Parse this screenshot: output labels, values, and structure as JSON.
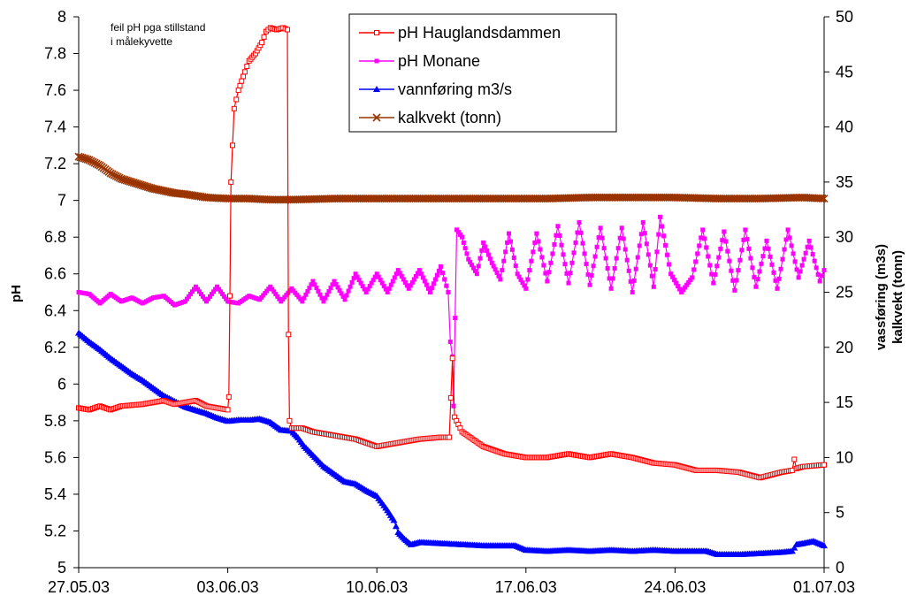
{
  "chart_data": {
    "type": "line",
    "title": "",
    "xlabel": "",
    "ylabel": "pH",
    "y2label_line1": "vassføring (m3s)",
    "y2label_line2": "kalkvekt (tonn)",
    "xlim": [
      0,
      35
    ],
    "ylim": [
      5,
      8
    ],
    "y2lim": [
      0,
      50
    ],
    "x_ticks": [
      0,
      7,
      14,
      21,
      28,
      35
    ],
    "x_tick_labels": [
      "27.05.03",
      "03.06.03",
      "10.06.03",
      "17.06.03",
      "24.06.03",
      "01.07.03"
    ],
    "y_ticks": [
      "5",
      "5.2",
      "5.4",
      "5.6",
      "5.8",
      "6",
      "6.2",
      "6.4",
      "6.6",
      "6.8",
      "7",
      "7.2",
      "7.4",
      "7.6",
      "7.8",
      "8"
    ],
    "y2_ticks": [
      "0",
      "5",
      "10",
      "15",
      "20",
      "25",
      "30",
      "35",
      "40",
      "45",
      "50"
    ],
    "grid": false,
    "legend_position": "top-center",
    "annotation_line1": "feil pH pga stillstand",
    "annotation_line2": "i målekyvette",
    "series": [
      {
        "name": "pH Hauglandsdammen",
        "axis": "left",
        "color": "#ff0000",
        "marker": "open-square",
        "points": [
          [
            0,
            5.87
          ],
          [
            0.5,
            5.86
          ],
          [
            1,
            5.88
          ],
          [
            1.5,
            5.86
          ],
          [
            2,
            5.88
          ],
          [
            3,
            5.89
          ],
          [
            3.5,
            5.9
          ],
          [
            4,
            5.91
          ],
          [
            4.5,
            5.89
          ],
          [
            5,
            5.9
          ],
          [
            5.5,
            5.91
          ],
          [
            6,
            5.88
          ],
          [
            6.5,
            5.87
          ],
          [
            7,
            5.86
          ],
          [
            7.05,
            5.93
          ],
          [
            7.1,
            6.48
          ],
          [
            7.15,
            7.1
          ],
          [
            7.3,
            7.5
          ],
          [
            7.5,
            7.6
          ],
          [
            7.8,
            7.7
          ],
          [
            8,
            7.76
          ],
          [
            8.3,
            7.8
          ],
          [
            8.6,
            7.86
          ],
          [
            8.8,
            7.92
          ],
          [
            9,
            7.94
          ],
          [
            9.3,
            7.93
          ],
          [
            9.6,
            7.94
          ],
          [
            9.8,
            7.93
          ],
          [
            9.85,
            6.27
          ],
          [
            9.9,
            5.8
          ],
          [
            10,
            5.76
          ],
          [
            10.5,
            5.76
          ],
          [
            11,
            5.74
          ],
          [
            12,
            5.72
          ],
          [
            13,
            5.7
          ],
          [
            14,
            5.66
          ],
          [
            15,
            5.68
          ],
          [
            16,
            5.7
          ],
          [
            17,
            5.71
          ],
          [
            17.4,
            5.71
          ],
          [
            17.55,
            6.14
          ],
          [
            17.65,
            5.82
          ],
          [
            18,
            5.74
          ],
          [
            18.5,
            5.7
          ],
          [
            19,
            5.66
          ],
          [
            20,
            5.62
          ],
          [
            21,
            5.6
          ],
          [
            22,
            5.6
          ],
          [
            23,
            5.62
          ],
          [
            24,
            5.6
          ],
          [
            25,
            5.62
          ],
          [
            26,
            5.6
          ],
          [
            27,
            5.57
          ],
          [
            28,
            5.56
          ],
          [
            29,
            5.53
          ],
          [
            30,
            5.53
          ],
          [
            31,
            5.52
          ],
          [
            32,
            5.49
          ],
          [
            33,
            5.52
          ],
          [
            33.5,
            5.53
          ],
          [
            33.6,
            5.59
          ],
          [
            33.7,
            5.54
          ],
          [
            34,
            5.55
          ],
          [
            35,
            5.56
          ]
        ]
      },
      {
        "name": "pH Monane",
        "axis": "left",
        "color": "#ff00ff",
        "marker": "filled-square",
        "points": [
          [
            0,
            6.5
          ],
          [
            0.5,
            6.49
          ],
          [
            1,
            6.44
          ],
          [
            1.5,
            6.49
          ],
          [
            2,
            6.45
          ],
          [
            2.5,
            6.47
          ],
          [
            3,
            6.44
          ],
          [
            3.5,
            6.47
          ],
          [
            4,
            6.48
          ],
          [
            4.5,
            6.43
          ],
          [
            5,
            6.45
          ],
          [
            5.5,
            6.53
          ],
          [
            6,
            6.45
          ],
          [
            6.5,
            6.53
          ],
          [
            7,
            6.45
          ],
          [
            7.5,
            6.44
          ],
          [
            8,
            6.48
          ],
          [
            8.5,
            6.46
          ],
          [
            9,
            6.53
          ],
          [
            9.5,
            6.45
          ],
          [
            10,
            6.52
          ],
          [
            10.5,
            6.45
          ],
          [
            11,
            6.56
          ],
          [
            11.5,
            6.45
          ],
          [
            12,
            6.56
          ],
          [
            12.5,
            6.46
          ],
          [
            13,
            6.6
          ],
          [
            13.5,
            6.5
          ],
          [
            14,
            6.6
          ],
          [
            14.5,
            6.5
          ],
          [
            15,
            6.62
          ],
          [
            15.5,
            6.52
          ],
          [
            16,
            6.62
          ],
          [
            16.5,
            6.5
          ],
          [
            17,
            6.64
          ],
          [
            17.35,
            6.5
          ],
          [
            17.45,
            6.23
          ],
          [
            17.55,
            6.15
          ],
          [
            17.6,
            5.88
          ],
          [
            17.75,
            6.84
          ],
          [
            18,
            6.8
          ],
          [
            18.3,
            6.68
          ],
          [
            18.7,
            6.6
          ],
          [
            19,
            6.77
          ],
          [
            19.4,
            6.66
          ],
          [
            19.8,
            6.57
          ],
          [
            20.2,
            6.82
          ],
          [
            20.6,
            6.6
          ],
          [
            21,
            6.52
          ],
          [
            21.5,
            6.82
          ],
          [
            22,
            6.56
          ],
          [
            22.5,
            6.86
          ],
          [
            23,
            6.55
          ],
          [
            23.5,
            6.88
          ],
          [
            24,
            6.54
          ],
          [
            24.5,
            6.85
          ],
          [
            25,
            6.52
          ],
          [
            25.5,
            6.85
          ],
          [
            26,
            6.5
          ],
          [
            26.5,
            6.88
          ],
          [
            27,
            6.53
          ],
          [
            27.3,
            6.91
          ],
          [
            27.8,
            6.6
          ],
          [
            28.3,
            6.5
          ],
          [
            28.8,
            6.58
          ],
          [
            29.3,
            6.84
          ],
          [
            29.8,
            6.55
          ],
          [
            30.3,
            6.83
          ],
          [
            30.8,
            6.51
          ],
          [
            31.3,
            6.84
          ],
          [
            31.8,
            6.53
          ],
          [
            32.3,
            6.78
          ],
          [
            32.8,
            6.52
          ],
          [
            33.3,
            6.84
          ],
          [
            33.8,
            6.58
          ],
          [
            34.3,
            6.78
          ],
          [
            34.8,
            6.56
          ],
          [
            35,
            6.62
          ]
        ]
      },
      {
        "name": "vannføring m3/s",
        "axis": "right",
        "color": "#0000ff",
        "marker": "filled-triangle",
        "points": [
          [
            0,
            21.3
          ],
          [
            0.5,
            20.5
          ],
          [
            1,
            19.8
          ],
          [
            1.5,
            19
          ],
          [
            2,
            18.3
          ],
          [
            2.5,
            17.6
          ],
          [
            3,
            17
          ],
          [
            3.5,
            16.3
          ],
          [
            4,
            15.6
          ],
          [
            4.5,
            15.1
          ],
          [
            5,
            14.6
          ],
          [
            5.5,
            14.3
          ],
          [
            6,
            14
          ],
          [
            6.5,
            13.6
          ],
          [
            7,
            13.3
          ],
          [
            7.5,
            13.4
          ],
          [
            8,
            13.4
          ],
          [
            8.5,
            13.5
          ],
          [
            9,
            13.2
          ],
          [
            9.5,
            12.5
          ],
          [
            10,
            12.4
          ],
          [
            10.3,
            11.8
          ],
          [
            10.6,
            11
          ],
          [
            11,
            10.2
          ],
          [
            11.5,
            9.2
          ],
          [
            12,
            8.5
          ],
          [
            12.5,
            7.8
          ],
          [
            13,
            7.6
          ],
          [
            13.5,
            7
          ],
          [
            14,
            6.5
          ],
          [
            14.5,
            5.2
          ],
          [
            14.8,
            4.3
          ],
          [
            15,
            3.2
          ],
          [
            15.3,
            2.6
          ],
          [
            15.6,
            2.1
          ],
          [
            16,
            2.3
          ],
          [
            17,
            2.2
          ],
          [
            18,
            2.1
          ],
          [
            19,
            2
          ],
          [
            20,
            2
          ],
          [
            20.5,
            2
          ],
          [
            21,
            1.6
          ],
          [
            22,
            1.5
          ],
          [
            23,
            1.6
          ],
          [
            24,
            1.5
          ],
          [
            25,
            1.6
          ],
          [
            26,
            1.5
          ],
          [
            27,
            1.6
          ],
          [
            28,
            1.5
          ],
          [
            29,
            1.5
          ],
          [
            29.5,
            1.5
          ],
          [
            30,
            1.2
          ],
          [
            31,
            1.2
          ],
          [
            32,
            1.3
          ],
          [
            33,
            1.4
          ],
          [
            33.5,
            1.5
          ],
          [
            33.7,
            2.1
          ],
          [
            34,
            2.2
          ],
          [
            34.5,
            2.4
          ],
          [
            35,
            2
          ]
        ]
      },
      {
        "name": "kalkvekt (tonn)",
        "axis": "right",
        "color": "#993300",
        "marker": "x",
        "points": [
          [
            0,
            37.3
          ],
          [
            0.5,
            37
          ],
          [
            1,
            36.5
          ],
          [
            1.5,
            35.8
          ],
          [
            2,
            35.3
          ],
          [
            2.5,
            35
          ],
          [
            3,
            34.7
          ],
          [
            3.5,
            34.4
          ],
          [
            4,
            34.2
          ],
          [
            4.5,
            34
          ],
          [
            5,
            33.9
          ],
          [
            6,
            33.6
          ],
          [
            7,
            33.5
          ],
          [
            8,
            33.5
          ],
          [
            9,
            33.4
          ],
          [
            10,
            33.4
          ],
          [
            12,
            33.5
          ],
          [
            14,
            33.5
          ],
          [
            16,
            33.5
          ],
          [
            18,
            33.5
          ],
          [
            20,
            33.5
          ],
          [
            22,
            33.5
          ],
          [
            24,
            33.6
          ],
          [
            26,
            33.6
          ],
          [
            28,
            33.6
          ],
          [
            30,
            33.5
          ],
          [
            32,
            33.5
          ],
          [
            34,
            33.6
          ],
          [
            35,
            33.5
          ]
        ]
      }
    ]
  }
}
